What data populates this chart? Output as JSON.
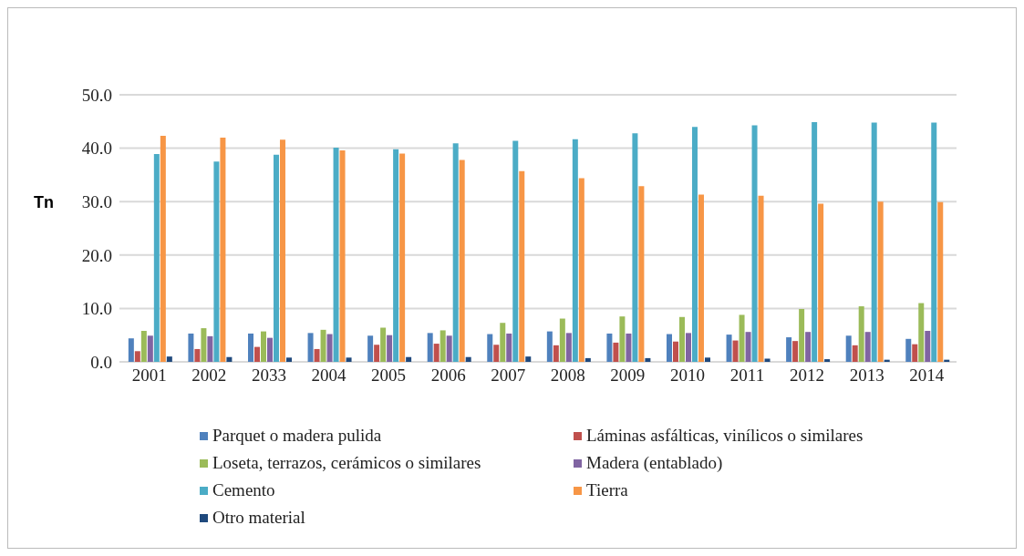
{
  "chart_data": {
    "type": "bar",
    "ylabel": "Tn",
    "categories": [
      "2001",
      "2002",
      "2033",
      "2004",
      "2005",
      "2006",
      "2007",
      "2008",
      "2009",
      "2010",
      "2011",
      "2012",
      "2013",
      "2014"
    ],
    "series": [
      {
        "name": "Parquet o madera pulida",
        "color": "#4f81bd",
        "values": [
          4.4,
          5.3,
          5.3,
          5.4,
          4.9,
          5.4,
          5.2,
          5.7,
          5.3,
          5.2,
          5.1,
          4.6,
          4.9,
          4.3
        ]
      },
      {
        "name": "Láminas asfálticas, vinílicos o similares",
        "color": "#c0504d",
        "values": [
          2.0,
          2.4,
          2.8,
          2.4,
          3.2,
          3.4,
          3.2,
          3.1,
          3.6,
          3.8,
          4.0,
          3.9,
          3.1,
          3.3
        ]
      },
      {
        "name": "Loseta, terrazos, cerámicos o similares",
        "color": "#9bbb59",
        "values": [
          5.8,
          6.3,
          5.7,
          6.0,
          6.4,
          5.9,
          7.3,
          8.1,
          8.5,
          8.4,
          8.8,
          9.9,
          10.4,
          11.0
        ]
      },
      {
        "name": "Madera (entablado)",
        "color": "#8064a2",
        "values": [
          4.9,
          4.8,
          4.5,
          5.2,
          5.0,
          4.9,
          5.3,
          5.4,
          5.3,
          5.4,
          5.6,
          5.6,
          5.6,
          5.8
        ]
      },
      {
        "name": "Cemento",
        "color": "#4bacc6",
        "values": [
          38.9,
          37.5,
          38.8,
          40.1,
          39.8,
          40.9,
          41.4,
          41.7,
          42.8,
          44.0,
          44.3,
          44.9,
          44.8,
          44.8
        ]
      },
      {
        "name": "Tierra",
        "color": "#f79646",
        "values": [
          42.3,
          42.0,
          41.6,
          39.6,
          39.0,
          37.8,
          35.7,
          34.4,
          32.9,
          31.3,
          31.1,
          29.6,
          30.0,
          29.9
        ]
      },
      {
        "name": "Otro material",
        "color": "#1f497d",
        "values": [
          1.0,
          0.9,
          0.8,
          0.8,
          0.9,
          0.9,
          1.0,
          0.7,
          0.7,
          0.8,
          0.6,
          0.5,
          0.4,
          0.4
        ]
      }
    ],
    "ylim": [
      0,
      50
    ],
    "yticks": [
      {
        "value": 0,
        "label": "0.0"
      },
      {
        "value": 10,
        "label": "10.0"
      },
      {
        "value": 20,
        "label": "20.0"
      },
      {
        "value": 30,
        "label": "30.0"
      },
      {
        "value": 40,
        "label": "40.0"
      },
      {
        "value": 50,
        "label": "50.0"
      }
    ],
    "grid": "y",
    "legend": "bottom"
  }
}
